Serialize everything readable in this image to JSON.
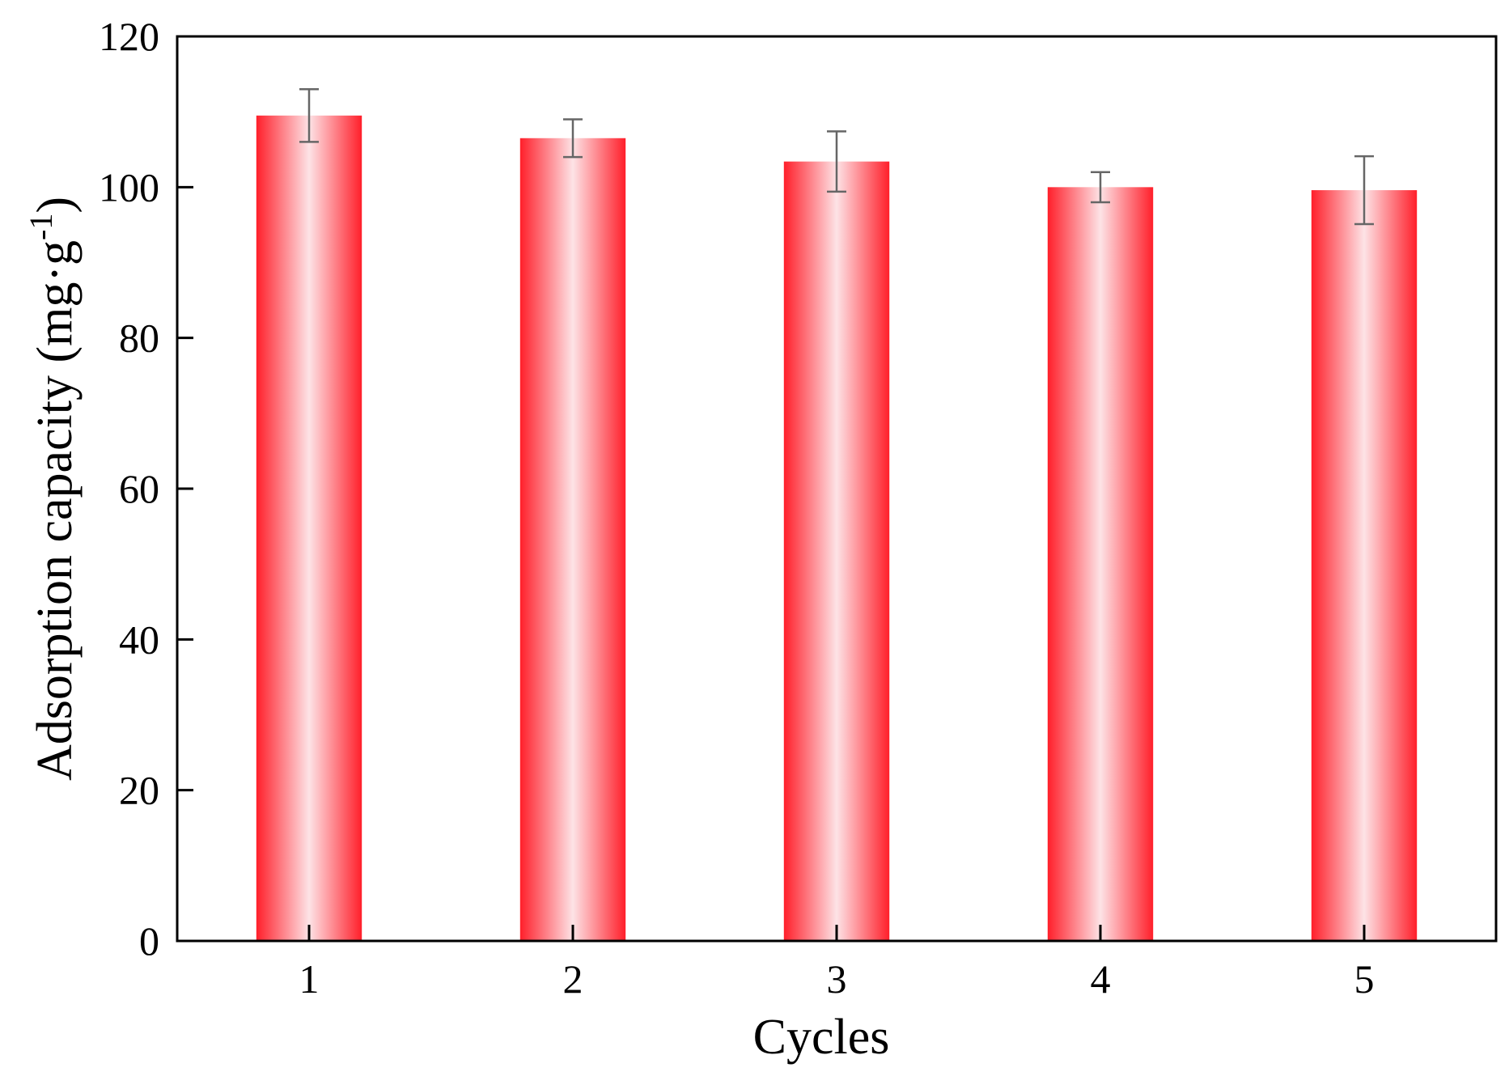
{
  "chart_data": {
    "type": "bar",
    "categories": [
      "1",
      "2",
      "3",
      "4",
      "5"
    ],
    "values": [
      109.5,
      106.5,
      103.4,
      100.0,
      99.6
    ],
    "errors": [
      3.5,
      2.5,
      4.0,
      2.0,
      4.5
    ],
    "xlabel": "Cycles",
    "ylabel": "Adsorption capacity (mg·g",
    "ylabel_sup": "-1",
    "ylabel_close": ")",
    "ylim": [
      0,
      120
    ],
    "yticks": [
      "0",
      "20",
      "40",
      "60",
      "80",
      "100",
      "120"
    ],
    "grid": false,
    "legend": "none",
    "colors": {
      "bar_edge": "#ff1f2a",
      "bar_center": "#fde3e6",
      "error_bar": "#666666",
      "axis": "#000000"
    }
  }
}
